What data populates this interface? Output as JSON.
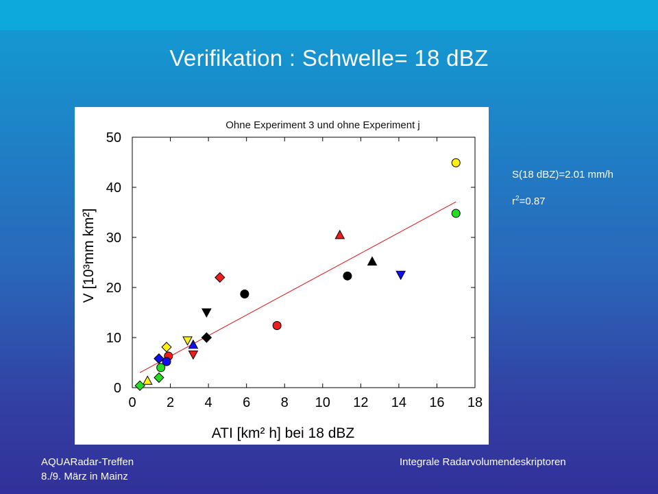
{
  "slide": {
    "title": "Verifikation : Schwelle= 18 dBZ",
    "footer_left_line1": "AQUARadar-Treffen",
    "footer_left_line2": "8./9. März in Mainz",
    "footer_right": "Integrale Radarvolumendeskriptoren"
  },
  "stats": {
    "slope": "S(18 dBZ)=2.01 mm/h",
    "r2_prefix": "r",
    "r2_sup": "2",
    "r2_value": "=0.87"
  },
  "colors": {
    "red": "#ee1c1c",
    "black": "#000000",
    "blue": "#1010ee",
    "green": "#22dd22",
    "yellow": "#ffee11",
    "fit_line": "#dd1111"
  },
  "chart_data": {
    "type": "scatter",
    "title": "Ohne Experiment 3 und ohne Experiment j",
    "xlabel": "ATI [km² h] bei 18 dBZ",
    "ylabel": "V [10³mm km²]",
    "xlim": [
      0,
      18
    ],
    "ylim": [
      0,
      50
    ],
    "xticks": [
      0,
      2,
      4,
      6,
      8,
      10,
      12,
      14,
      16,
      18
    ],
    "yticks": [
      0,
      10,
      20,
      30,
      40,
      50
    ],
    "grid": false,
    "fit_line": {
      "x": [
        0.4,
        17
      ],
      "y": [
        3,
        37.1
      ]
    },
    "points": [
      {
        "x": 17.0,
        "y": 44.9,
        "shape": "circle",
        "color": "yellow"
      },
      {
        "x": 17.0,
        "y": 34.8,
        "shape": "circle",
        "color": "green"
      },
      {
        "x": 10.9,
        "y": 30.5,
        "shape": "triangle-up",
        "color": "red"
      },
      {
        "x": 12.6,
        "y": 25.2,
        "shape": "triangle-up",
        "color": "black"
      },
      {
        "x": 11.3,
        "y": 22.3,
        "shape": "circle",
        "color": "black"
      },
      {
        "x": 14.1,
        "y": 22.5,
        "shape": "triangle-down",
        "color": "blue"
      },
      {
        "x": 4.6,
        "y": 22.0,
        "shape": "diamond",
        "color": "red"
      },
      {
        "x": 5.9,
        "y": 18.7,
        "shape": "circle",
        "color": "black"
      },
      {
        "x": 3.9,
        "y": 15.0,
        "shape": "triangle-down",
        "color": "black"
      },
      {
        "x": 7.6,
        "y": 12.4,
        "shape": "circle",
        "color": "red"
      },
      {
        "x": 3.9,
        "y": 10.0,
        "shape": "diamond",
        "color": "black"
      },
      {
        "x": 2.9,
        "y": 9.4,
        "shape": "triangle-down",
        "color": "yellow"
      },
      {
        "x": 3.2,
        "y": 8.6,
        "shape": "triangle-up",
        "color": "blue"
      },
      {
        "x": 1.8,
        "y": 8.1,
        "shape": "diamond",
        "color": "yellow"
      },
      {
        "x": 3.2,
        "y": 6.6,
        "shape": "triangle-down",
        "color": "red"
      },
      {
        "x": 1.9,
        "y": 6.3,
        "shape": "circle",
        "color": "red"
      },
      {
        "x": 1.4,
        "y": 5.8,
        "shape": "diamond",
        "color": "blue"
      },
      {
        "x": 1.8,
        "y": 5.2,
        "shape": "circle",
        "color": "blue"
      },
      {
        "x": 1.5,
        "y": 4.0,
        "shape": "circle",
        "color": "green"
      },
      {
        "x": 1.4,
        "y": 2.0,
        "shape": "diamond",
        "color": "green"
      },
      {
        "x": 0.8,
        "y": 1.4,
        "shape": "triangle-up",
        "color": "yellow"
      },
      {
        "x": 0.4,
        "y": 0.4,
        "shape": "diamond",
        "color": "green"
      }
    ]
  }
}
